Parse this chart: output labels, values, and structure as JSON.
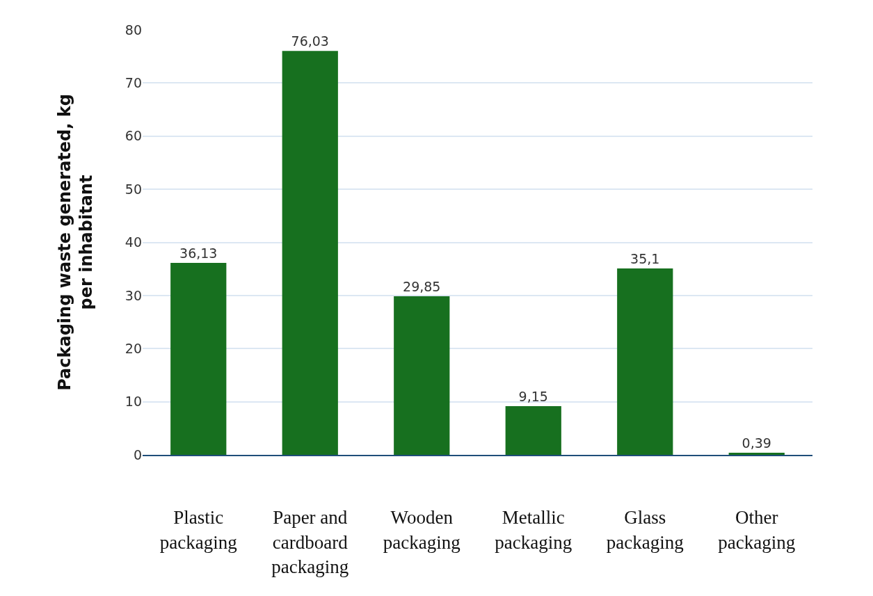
{
  "chart_data": {
    "type": "bar",
    "ylabel": "Packaging waste generated, kg per inhabitant",
    "categories": [
      "Plastic packaging",
      "Paper and cardboard packaging",
      "Wooden packaging",
      "Metallic packaging",
      "Glass packaging",
      "Other packaging"
    ],
    "values": [
      36.13,
      76.03,
      29.85,
      9.15,
      35.1,
      0.39
    ],
    "value_labels": [
      "36,13",
      "76,03",
      "29,85",
      "9,15",
      "35,1",
      "0,39"
    ],
    "color": "#17701f",
    "ylim": [
      0,
      80
    ],
    "yticks": [
      0,
      10,
      20,
      30,
      40,
      50,
      60,
      70,
      80
    ],
    "grid": "y"
  }
}
